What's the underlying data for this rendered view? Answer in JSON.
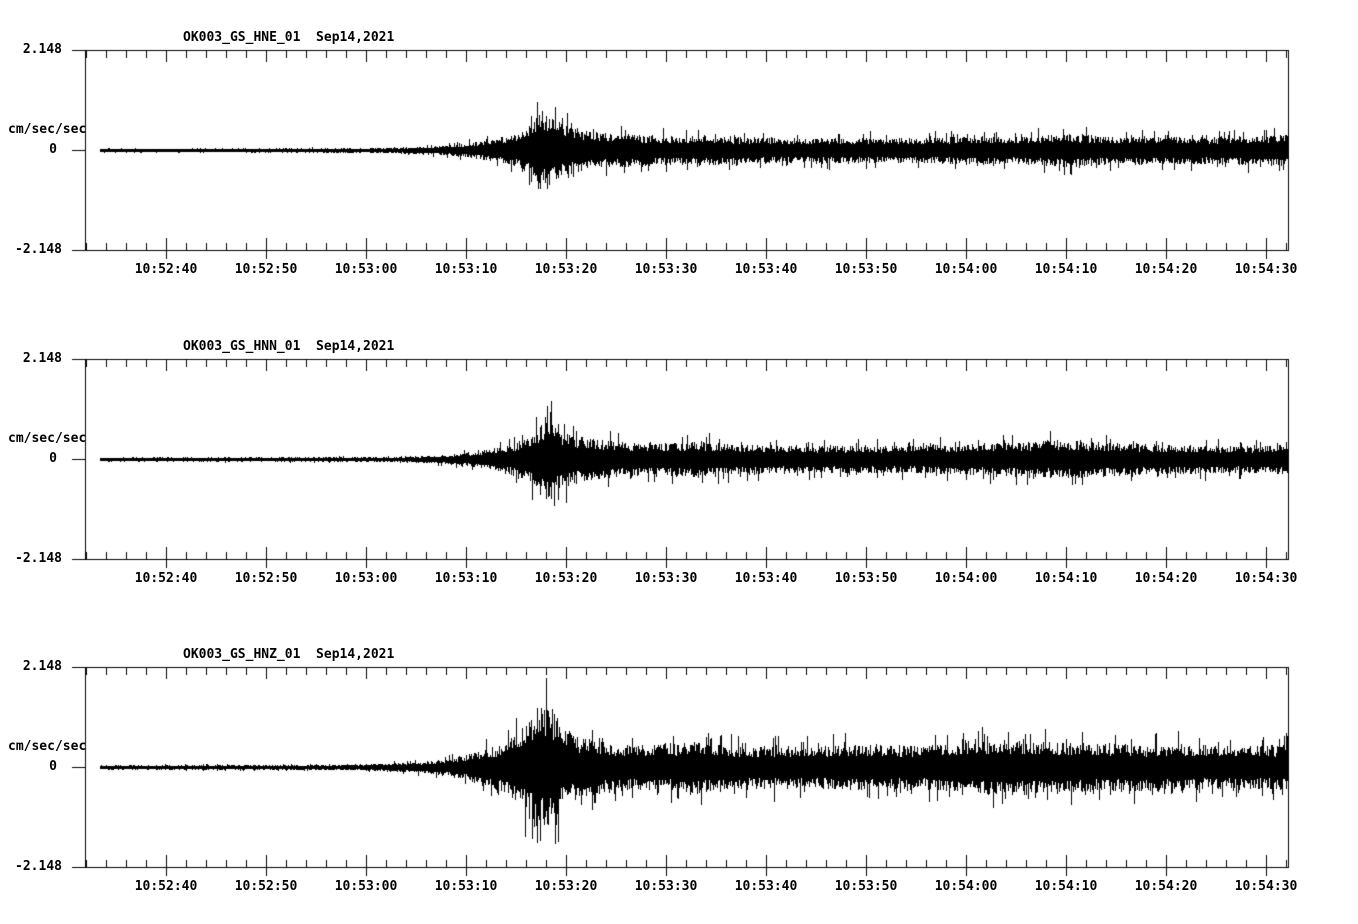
{
  "page": {
    "background_color": "#ffffff",
    "ink_color": "#000000",
    "description": "Three-panel strong-motion seismogram record section"
  },
  "chart_data": [
    {
      "type": "line",
      "title": "OK003_GS_HNE_01  Sep14,2021",
      "station": "OK003",
      "network": "GS",
      "channel": "HNE",
      "location": "01",
      "date": "Sep14,2021",
      "ylabel": "cm/sec/sec",
      "yticks": [
        "2.148",
        "0",
        "-2.148"
      ],
      "ylim": [
        -2.148,
        2.148
      ],
      "x_ticklabels": [
        "10:52:40",
        "10:52:50",
        "10:53:00",
        "10:53:10",
        "10:53:20",
        "10:53:30",
        "10:53:40",
        "10:53:50",
        "10:54:00",
        "10:54:10",
        "10:54:20",
        "10:54:30"
      ],
      "x_major_interval_sec": 10,
      "x_minor_interval_sec": 2,
      "grid": false,
      "legend": "none",
      "peak_amplitude_cm_s2": 1.35,
      "peak_time": "10:53:18",
      "envelope_time_base": "seconds after 10:52:30",
      "envelope_units": "cm/sec/sec",
      "envelope": [
        [
          3,
          0.05
        ],
        [
          15,
          0.05
        ],
        [
          25,
          0.055
        ],
        [
          30,
          0.06
        ],
        [
          34,
          0.09
        ],
        [
          37,
          0.13
        ],
        [
          40,
          0.22
        ],
        [
          42,
          0.32
        ],
        [
          44,
          0.45
        ],
        [
          45.5,
          0.62
        ],
        [
          46.5,
          0.85
        ],
        [
          47.3,
          1.28
        ],
        [
          48.3,
          1.35
        ],
        [
          49,
          1.0
        ],
        [
          50,
          0.85
        ],
        [
          52,
          0.66
        ],
        [
          54,
          0.56
        ],
        [
          57,
          0.5
        ],
        [
          60,
          0.46
        ],
        [
          63,
          0.52
        ],
        [
          66,
          0.46
        ],
        [
          70,
          0.42
        ],
        [
          74,
          0.4
        ],
        [
          78,
          0.42
        ],
        [
          82,
          0.4
        ],
        [
          86,
          0.42
        ],
        [
          90,
          0.46
        ],
        [
          94,
          0.44
        ],
        [
          97,
          0.48
        ],
        [
          100,
          0.58
        ],
        [
          102,
          0.5
        ],
        [
          106,
          0.44
        ],
        [
          110,
          0.46
        ],
        [
          114,
          0.44
        ],
        [
          118,
          0.48
        ],
        [
          122,
          0.5
        ]
      ]
    },
    {
      "type": "line",
      "title": "OK003_GS_HNN_01  Sep14,2021",
      "station": "OK003",
      "network": "GS",
      "channel": "HNN",
      "location": "01",
      "date": "Sep14,2021",
      "ylabel": "cm/sec/sec",
      "yticks": [
        "2.148",
        "0",
        "-2.148"
      ],
      "ylim": [
        -2.148,
        2.148
      ],
      "x_ticklabels": [
        "10:52:40",
        "10:52:50",
        "10:53:00",
        "10:53:10",
        "10:53:20",
        "10:53:30",
        "10:53:40",
        "10:53:50",
        "10:54:00",
        "10:54:10",
        "10:54:20",
        "10:54:30"
      ],
      "x_major_interval_sec": 10,
      "x_minor_interval_sec": 2,
      "grid": false,
      "legend": "none",
      "peak_amplitude_cm_s2": 1.7,
      "peak_time": "10:53:18",
      "envelope_time_base": "seconds after 10:52:30",
      "envelope_units": "cm/sec/sec",
      "envelope": [
        [
          3,
          0.05
        ],
        [
          20,
          0.055
        ],
        [
          30,
          0.06
        ],
        [
          35,
          0.09
        ],
        [
          38,
          0.13
        ],
        [
          41,
          0.25
        ],
        [
          43,
          0.38
        ],
        [
          45,
          0.55
        ],
        [
          46.5,
          0.8
        ],
        [
          47.6,
          1.3
        ],
        [
          48.4,
          1.65
        ],
        [
          49.2,
          1.05
        ],
        [
          50.5,
          0.85
        ],
        [
          52,
          0.7
        ],
        [
          54,
          0.6
        ],
        [
          57,
          0.55
        ],
        [
          60,
          0.52
        ],
        [
          63,
          0.62
        ],
        [
          65,
          0.52
        ],
        [
          68,
          0.48
        ],
        [
          72,
          0.45
        ],
        [
          76,
          0.43
        ],
        [
          80,
          0.45
        ],
        [
          84,
          0.43
        ],
        [
          88,
          0.48
        ],
        [
          92,
          0.52
        ],
        [
          95,
          0.55
        ],
        [
          98,
          0.6
        ],
        [
          101,
          0.62
        ],
        [
          104,
          0.55
        ],
        [
          108,
          0.5
        ],
        [
          112,
          0.46
        ],
        [
          116,
          0.44
        ],
        [
          119,
          0.46
        ],
        [
          122,
          0.5
        ]
      ]
    },
    {
      "type": "line",
      "title": "OK003_GS_HNZ_01  Sep14,2021",
      "station": "OK003",
      "network": "GS",
      "channel": "HNZ",
      "location": "01",
      "date": "Sep14,2021",
      "ylabel": "cm/sec/sec",
      "yticks": [
        "2.148",
        "0",
        "-2.148"
      ],
      "ylim": [
        -2.148,
        2.148
      ],
      "x_ticklabels": [
        "10:52:40",
        "10:52:50",
        "10:53:00",
        "10:53:10",
        "10:53:20",
        "10:53:30",
        "10:53:40",
        "10:53:50",
        "10:54:00",
        "10:54:10",
        "10:54:20",
        "10:54:30"
      ],
      "x_major_interval_sec": 10,
      "x_minor_interval_sec": 2,
      "grid": false,
      "legend": "none",
      "peak_amplitude_cm_s2": 2.0,
      "peak_time": "10:53:17",
      "envelope_time_base": "seconds after 10:52:30",
      "envelope_units": "cm/sec/sec",
      "envelope": [
        [
          3,
          0.055
        ],
        [
          15,
          0.06
        ],
        [
          25,
          0.07
        ],
        [
          30,
          0.09
        ],
        [
          33,
          0.12
        ],
        [
          36,
          0.18
        ],
        [
          38,
          0.28
        ],
        [
          40,
          0.42
        ],
        [
          42,
          0.6
        ],
        [
          44,
          0.85
        ],
        [
          45.5,
          1.3
        ],
        [
          46.8,
          1.95
        ],
        [
          48.5,
          2.0
        ],
        [
          49.5,
          1.4
        ],
        [
          51,
          1.05
        ],
        [
          53,
          0.9
        ],
        [
          55,
          0.78
        ],
        [
          58,
          0.72
        ],
        [
          61,
          0.8
        ],
        [
          63,
          0.88
        ],
        [
          65,
          0.75
        ],
        [
          68,
          0.68
        ],
        [
          71,
          0.72
        ],
        [
          74,
          0.68
        ],
        [
          77,
          0.72
        ],
        [
          80,
          0.75
        ],
        [
          83,
          0.7
        ],
        [
          86,
          0.72
        ],
        [
          89,
          0.78
        ],
        [
          92,
          0.85
        ],
        [
          94,
          0.92
        ],
        [
          96,
          0.88
        ],
        [
          99,
          0.85
        ],
        [
          102,
          0.78
        ],
        [
          105,
          0.8
        ],
        [
          108,
          0.75
        ],
        [
          111,
          0.78
        ],
        [
          114,
          0.72
        ],
        [
          117,
          0.7
        ],
        [
          120,
          0.72
        ],
        [
          122,
          0.75
        ]
      ]
    }
  ]
}
